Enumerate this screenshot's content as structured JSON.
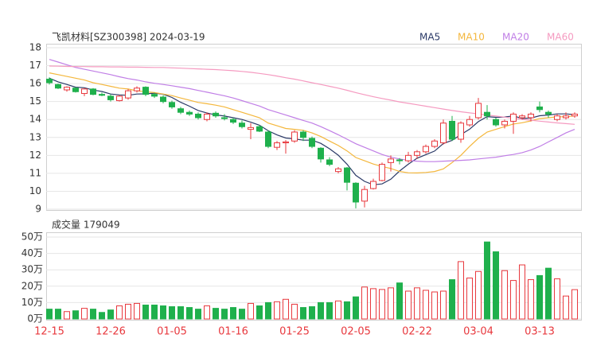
{
  "chart_data": [
    {
      "type": "candlestick",
      "title": "飞凯材料[SZ300398] 2024-03-19",
      "up_color": "#e8393e",
      "down_color": "#1fb04c",
      "open": [
        16.25,
        15.95,
        15.65,
        15.75,
        15.45,
        15.7,
        15.4,
        15.3,
        15.05,
        15.2,
        15.6,
        15.8,
        15.4,
        15.25,
        14.95,
        14.6,
        14.4,
        14.3,
        14.0,
        14.35,
        14.1,
        14.0,
        13.8,
        13.45,
        13.6,
        13.3,
        12.45,
        12.7,
        12.8,
        13.3,
        12.95,
        12.4,
        11.75,
        11.1,
        11.3,
        10.45,
        9.45,
        10.15,
        10.6,
        11.6,
        11.75,
        11.7,
        12.0,
        12.2,
        12.5,
        12.7,
        13.9,
        12.9,
        13.7,
        14.1,
        14.4,
        14.0,
        13.7,
        13.9,
        14.1,
        14.1,
        14.7,
        14.4,
        14.0,
        14.1,
        14.2
      ],
      "high": [
        16.35,
        16.0,
        15.85,
        15.8,
        15.75,
        15.75,
        15.5,
        15.4,
        15.35,
        15.7,
        15.85,
        15.85,
        15.5,
        15.35,
        15.05,
        14.7,
        14.5,
        14.4,
        14.4,
        14.45,
        14.3,
        14.1,
        13.95,
        13.8,
        13.7,
        13.4,
        12.8,
        12.85,
        13.4,
        13.4,
        13.05,
        12.45,
        11.9,
        11.35,
        11.35,
        10.5,
        10.3,
        10.7,
        11.6,
        12.0,
        11.85,
        12.2,
        12.3,
        12.6,
        12.9,
        14.0,
        14.2,
        13.9,
        14.2,
        15.2,
        14.8,
        14.1,
        14.0,
        14.4,
        14.3,
        14.4,
        15.0,
        14.5,
        14.3,
        14.4,
        14.4
      ],
      "low": [
        15.95,
        15.7,
        15.55,
        15.5,
        15.3,
        15.35,
        15.3,
        15.0,
        15.0,
        15.1,
        15.5,
        15.3,
        15.2,
        14.9,
        14.6,
        14.3,
        14.2,
        14.0,
        13.9,
        14.1,
        13.95,
        13.75,
        13.5,
        12.9,
        13.3,
        12.4,
        12.3,
        12.1,
        12.7,
        12.8,
        12.4,
        11.6,
        11.4,
        11.0,
        10.05,
        9.05,
        9.1,
        10.1,
        10.55,
        11.1,
        11.5,
        11.6,
        11.8,
        12.1,
        12.4,
        12.6,
        12.8,
        12.7,
        13.6,
        14.0,
        14.0,
        13.6,
        13.5,
        13.2,
        14.0,
        13.9,
        14.4,
        14.1,
        13.9,
        14.0,
        14.1
      ],
      "close": [
        16.05,
        15.75,
        15.8,
        15.55,
        15.7,
        15.4,
        15.35,
        15.1,
        15.3,
        15.6,
        15.75,
        15.4,
        15.3,
        15.0,
        14.7,
        14.4,
        14.3,
        14.1,
        14.3,
        14.2,
        14.05,
        13.85,
        13.6,
        13.55,
        13.35,
        12.5,
        12.7,
        12.75,
        13.3,
        13.0,
        12.5,
        11.8,
        11.5,
        11.25,
        10.5,
        9.4,
        10.1,
        10.55,
        11.5,
        11.8,
        11.7,
        12.0,
        12.2,
        12.5,
        12.8,
        13.8,
        12.9,
        13.8,
        14.0,
        14.9,
        14.2,
        13.7,
        13.9,
        14.3,
        14.2,
        14.3,
        14.55,
        14.3,
        14.2,
        14.2,
        14.3
      ],
      "series": [
        {
          "name": "MA5",
          "color": "#2b3a67",
          "values": [
            16.3,
            16.1,
            15.95,
            15.8,
            15.77,
            15.64,
            15.56,
            15.42,
            15.37,
            15.35,
            15.42,
            15.43,
            15.47,
            15.41,
            15.23,
            14.96,
            14.74,
            14.5,
            14.36,
            14.26,
            14.19,
            14.1,
            14.0,
            13.85,
            13.68,
            13.37,
            13.14,
            12.97,
            12.92,
            12.85,
            12.85,
            12.67,
            12.37,
            12.01,
            11.51,
            10.89,
            10.55,
            10.36,
            10.41,
            10.67,
            11.13,
            11.51,
            11.84,
            12.04,
            12.24,
            12.66,
            12.84,
            13.16,
            13.46,
            13.88,
            14.16,
            14.12,
            14.14,
            14.2,
            14.06,
            14.08,
            14.21,
            14.25,
            14.31,
            14.31,
            14.27
          ]
        },
        {
          "name": "MA10",
          "color": "#f4b73c",
          "values": [
            16.6,
            16.5,
            16.4,
            16.3,
            16.2,
            16.05,
            15.95,
            15.85,
            15.75,
            15.7,
            15.6,
            15.55,
            15.5,
            15.42,
            15.33,
            15.2,
            15.08,
            14.95,
            14.88,
            14.8,
            14.7,
            14.55,
            14.4,
            14.25,
            14.1,
            13.8,
            13.65,
            13.5,
            13.45,
            13.4,
            13.25,
            13.05,
            12.8,
            12.55,
            12.25,
            11.88,
            11.7,
            11.52,
            11.38,
            11.27,
            11.1,
            11.03,
            11.02,
            11.05,
            11.1,
            11.25,
            11.6,
            12.0,
            12.5,
            12.95,
            13.3,
            13.45,
            13.6,
            13.75,
            13.82,
            13.92,
            14.05,
            14.1,
            14.15,
            14.15,
            14.2
          ]
        },
        {
          "name": "MA20",
          "color": "#c07ee6",
          "values": [
            17.35,
            17.2,
            17.05,
            16.9,
            16.8,
            16.7,
            16.6,
            16.5,
            16.38,
            16.28,
            16.2,
            16.1,
            16.02,
            15.95,
            15.88,
            15.8,
            15.72,
            15.62,
            15.52,
            15.42,
            15.32,
            15.2,
            15.05,
            14.9,
            14.75,
            14.55,
            14.4,
            14.25,
            14.1,
            13.95,
            13.8,
            13.6,
            13.38,
            13.15,
            12.9,
            12.65,
            12.45,
            12.25,
            12.05,
            11.9,
            11.8,
            11.72,
            11.68,
            11.65,
            11.65,
            11.68,
            11.7,
            11.72,
            11.75,
            11.8,
            11.85,
            11.9,
            11.98,
            12.05,
            12.15,
            12.3,
            12.5,
            12.75,
            13.0,
            13.25,
            13.45
          ]
        },
        {
          "name": "MA60",
          "color": "#f59ac0",
          "values": [
            16.98,
            16.97,
            16.96,
            16.95,
            16.95,
            16.94,
            16.94,
            16.93,
            16.93,
            16.92,
            16.92,
            16.91,
            16.9,
            16.9,
            16.88,
            16.86,
            16.84,
            16.82,
            16.8,
            16.78,
            16.75,
            16.72,
            16.68,
            16.63,
            16.57,
            16.5,
            16.42,
            16.33,
            16.25,
            16.15,
            16.05,
            15.95,
            15.85,
            15.75,
            15.63,
            15.5,
            15.38,
            15.27,
            15.17,
            15.08,
            14.98,
            14.9,
            14.82,
            14.74,
            14.66,
            14.58,
            14.5,
            14.43,
            14.37,
            14.31,
            14.25,
            14.19,
            14.13,
            14.07,
            14.01,
            13.96,
            13.91,
            13.86,
            13.81,
            13.77,
            13.73
          ]
        }
      ],
      "ylim": [
        9,
        18
      ],
      "yticks": [
        9,
        10,
        11,
        12,
        13,
        14,
        15,
        16,
        17,
        18
      ],
      "grid": true,
      "legend": "top-right"
    },
    {
      "type": "bar",
      "title": "成交量 179049",
      "categories": [
        "12-15",
        null,
        null,
        null,
        null,
        null,
        null,
        "12-26",
        null,
        null,
        null,
        null,
        null,
        null,
        "01-05",
        null,
        null,
        null,
        null,
        null,
        null,
        "01-16",
        null,
        null,
        null,
        null,
        null,
        null,
        "01-25",
        null,
        null,
        null,
        null,
        null,
        null,
        "02-05",
        null,
        null,
        null,
        null,
        null,
        null,
        "02-22",
        null,
        null,
        null,
        null,
        null,
        null,
        "03-04",
        null,
        null,
        null,
        null,
        null,
        null,
        "03-13",
        null,
        null,
        null,
        null
      ],
      "values": [
        6,
        6,
        4.5,
        5,
        6.5,
        6,
        4,
        5.5,
        8,
        9,
        9.5,
        8.5,
        8.5,
        8,
        7.5,
        7.5,
        7,
        6,
        8,
        6.5,
        6,
        7,
        6,
        9.5,
        8,
        10,
        10.5,
        12,
        9,
        7,
        7.5,
        10,
        10,
        11,
        10.5,
        13.5,
        19.5,
        18.5,
        18,
        19,
        22,
        17,
        19,
        17.5,
        16.5,
        17,
        24,
        35,
        25,
        29,
        47,
        41,
        29.5,
        23.5,
        33,
        24,
        26.5,
        31,
        24.5,
        14,
        17.9
      ],
      "ylim": [
        0,
        50
      ],
      "yticks": [
        {
          "value": 0,
          "label": "0万"
        },
        {
          "value": 10,
          "label": "10万"
        },
        {
          "value": 20,
          "label": "20万"
        },
        {
          "value": 30,
          "label": "30万"
        },
        {
          "value": 40,
          "label": "40万"
        },
        {
          "value": 50,
          "label": "50万"
        }
      ],
      "grid": true
    }
  ]
}
